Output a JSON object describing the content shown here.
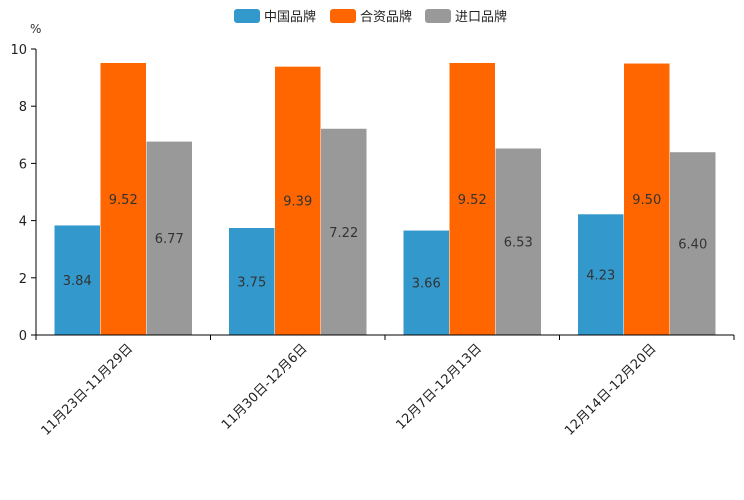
{
  "chart_data": {
    "type": "bar",
    "title": "",
    "unit_label": "%",
    "xlabel": "",
    "ylabel": "",
    "ylim": [
      0,
      10
    ],
    "yticks": [
      0,
      2,
      4,
      6,
      8,
      10
    ],
    "legend_position": "top-center",
    "grid": false,
    "categories": [
      "11月23日-11月29日",
      "11月30日-12月6日",
      "12月7日-12月13日",
      "12月14日-12月20日"
    ],
    "series": [
      {
        "name": "中国品牌",
        "color": "#3399cc",
        "values": [
          3.84,
          3.75,
          3.66,
          4.23
        ],
        "labels": [
          "3.84",
          "3.75",
          "3.66",
          "4.23"
        ]
      },
      {
        "name": "合资品牌",
        "color": "#ff6600",
        "values": [
          9.52,
          9.39,
          9.52,
          9.5
        ],
        "labels": [
          "9.52",
          "9.39",
          "9.52",
          "9.50"
        ]
      },
      {
        "name": "进口品牌",
        "color": "#999999",
        "values": [
          6.77,
          7.22,
          6.53,
          6.4
        ],
        "labels": [
          "6.77",
          "7.22",
          "6.53",
          "6.40"
        ]
      }
    ]
  }
}
